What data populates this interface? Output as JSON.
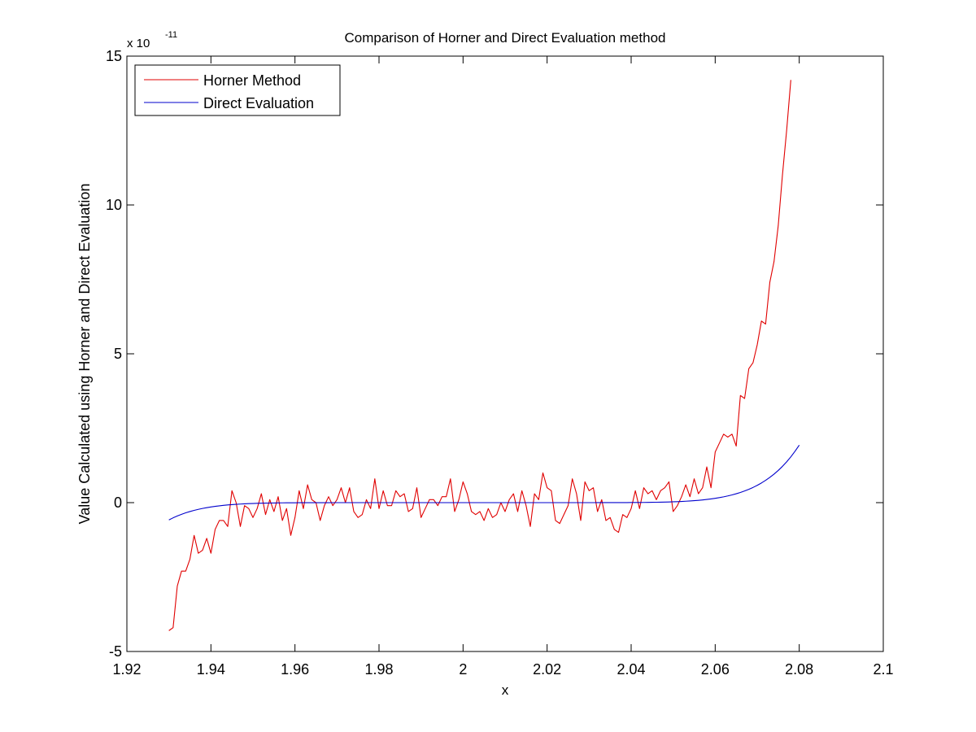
{
  "chart_data": {
    "type": "line",
    "title": "Comparison of Horner and Direct Evaluation method",
    "xlabel": "x",
    "ylabel": "Value Calculated using Horner and Direct Evaluation",
    "y_multiplier_base": "x 10",
    "y_multiplier_exp": "-11",
    "xlim": [
      1.92,
      2.1
    ],
    "ylim": [
      -5,
      15
    ],
    "x_ticks": [
      "1.92",
      "1.94",
      "1.96",
      "1.98",
      "2",
      "2.02",
      "2.04",
      "2.06",
      "2.08",
      "2.1"
    ],
    "y_ticks": [
      "-5",
      "0",
      "5",
      "10",
      "15"
    ],
    "grid": false,
    "legend_position": "top-left",
    "series": [
      {
        "name": "Horner Method",
        "color": "#e00000",
        "x_start": 1.93,
        "x_step": 0.001,
        "values": [
          -4.3,
          -4.2,
          -2.8,
          -2.3,
          -2.3,
          -1.9,
          -1.1,
          -1.7,
          -1.6,
          -1.2,
          -1.7,
          -0.9,
          -0.6,
          -0.6,
          -0.8,
          0.4,
          0.0,
          -0.8,
          -0.1,
          -0.2,
          -0.5,
          -0.2,
          0.3,
          -0.4,
          0.1,
          -0.3,
          0.2,
          -0.6,
          -0.2,
          -1.1,
          -0.5,
          0.4,
          -0.2,
          0.6,
          0.1,
          0.0,
          -0.6,
          -0.1,
          0.2,
          -0.1,
          0.1,
          0.5,
          0.0,
          0.5,
          -0.3,
          -0.5,
          -0.4,
          0.1,
          -0.2,
          0.8,
          -0.2,
          0.4,
          -0.1,
          -0.1,
          0.4,
          0.2,
          0.3,
          -0.3,
          -0.2,
          0.5,
          -0.5,
          -0.2,
          0.1,
          0.1,
          -0.1,
          0.2,
          0.2,
          0.8,
          -0.3,
          0.1,
          0.7,
          0.3,
          -0.3,
          -0.4,
          -0.3,
          -0.6,
          -0.2,
          -0.5,
          -0.4,
          0.0,
          -0.3,
          0.1,
          0.3,
          -0.3,
          0.4,
          -0.1,
          -0.8,
          0.3,
          0.1,
          1.0,
          0.5,
          0.4,
          -0.6,
          -0.7,
          -0.4,
          -0.1,
          0.8,
          0.3,
          -0.6,
          0.7,
          0.4,
          0.5,
          -0.3,
          0.1,
          -0.6,
          -0.5,
          -0.9,
          -1.0,
          -0.4,
          -0.5,
          -0.2,
          0.4,
          -0.2,
          0.5,
          0.3,
          0.4,
          0.1,
          0.4,
          0.5,
          0.7,
          -0.3,
          -0.1,
          0.2,
          0.6,
          0.2,
          0.8,
          0.3,
          0.5,
          1.2,
          0.5,
          1.7,
          2.0,
          2.3,
          2.2,
          2.3,
          1.9,
          3.6,
          3.5,
          4.5,
          4.7,
          5.3,
          6.1,
          6.0,
          7.4,
          8.1,
          9.3,
          11.0,
          12.5,
          14.2
        ]
      },
      {
        "name": "Direct Evaluation",
        "color": "#0000cc",
        "x_start": 1.93,
        "x_step": 0.001,
        "poly_coef": 14400000000,
        "poly_center": 2.0,
        "poly_power": 9
      }
    ]
  }
}
